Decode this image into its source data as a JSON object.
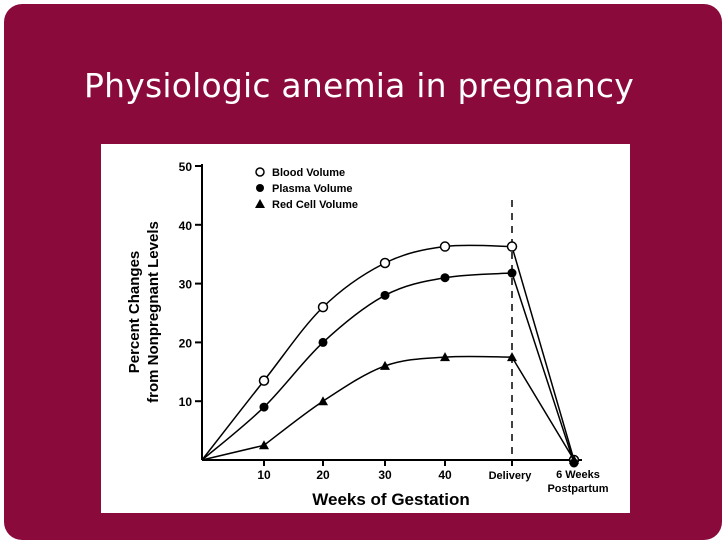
{
  "slide": {
    "title": "Physiologic anemia in pregnancy"
  },
  "chart_data": {
    "type": "line",
    "x_tick_labels": [
      "10",
      "20",
      "30",
      "40",
      "Delivery",
      "6 Weeks",
      "Postpartum"
    ],
    "y_tick_labels": [
      "10",
      "20",
      "30",
      "40",
      "50"
    ],
    "ylabel_line1": "Percent Changes",
    "ylabel_line2": "from Nonpregnant Levels",
    "xlabel": "Weeks of Gestation",
    "ylim": [
      0,
      50
    ],
    "categories": [
      "0",
      "10",
      "20",
      "30",
      "40",
      "Delivery",
      "6 Weeks Postpartum"
    ],
    "series": [
      {
        "name": "Blood Volume",
        "marker": "open-circle",
        "values": [
          0,
          13.5,
          26,
          33.5,
          36.3,
          36.3,
          0
        ]
      },
      {
        "name": "Plasma Volume",
        "marker": "filled-circle",
        "values": [
          0,
          9,
          20,
          28,
          31,
          31.8,
          -0.5
        ]
      },
      {
        "name": "Red Cell Volume",
        "marker": "filled-triangle",
        "values": [
          null,
          2.5,
          10,
          16,
          17.5,
          17.5,
          0
        ]
      }
    ],
    "delivery_marker": "dashed vertical line at Delivery",
    "legend_position": "top-left",
    "grid": false,
    "colors": {
      "line": "#000000",
      "background": "#ffffff"
    }
  }
}
